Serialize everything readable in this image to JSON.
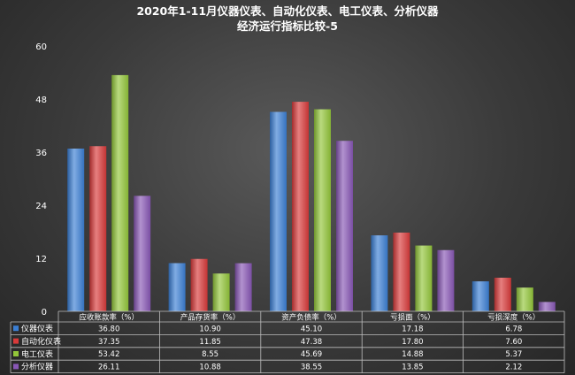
{
  "chart_data": {
    "type": "bar",
    "title": [
      "2020年1-11月仪器仪表、自动化仪表、电工仪表、分析仪器",
      "经济运行指标比较-5"
    ],
    "categories": [
      "应收账款率（%）",
      "产品存货率（%）",
      "资产负债率（%）",
      "亏损面（%）",
      "亏损深度（%）"
    ],
    "y_ticks": [
      "0",
      "12",
      "24",
      "36",
      "48",
      "60"
    ],
    "ylim": [
      0,
      60
    ],
    "grid": false,
    "legend": "bottom-table",
    "series": [
      {
        "name": "仪器仪表",
        "color": "#3b7fd4",
        "values": [
          36.8,
          10.9,
          45.1,
          17.18,
          6.78
        ],
        "labels": [
          "36.80",
          "10.90",
          "45.10",
          "17.18",
          "6.78"
        ]
      },
      {
        "name": "自动化仪表",
        "color": "#d93a3a",
        "values": [
          37.35,
          11.85,
          47.38,
          17.8,
          7.6
        ],
        "labels": [
          "37.35",
          "11.85",
          "47.38",
          "17.80",
          "7.60"
        ]
      },
      {
        "name": "电工仪表",
        "color": "#93c63a",
        "values": [
          53.42,
          8.55,
          45.69,
          14.88,
          5.37
        ],
        "labels": [
          "53.42",
          "8.55",
          "45.69",
          "14.88",
          "5.37"
        ]
      },
      {
        "name": "分析仪器",
        "color": "#8857b5",
        "values": [
          26.11,
          10.88,
          38.55,
          13.85,
          2.12
        ],
        "labels": [
          "26.11",
          "10.88",
          "38.55",
          "13.85",
          "2.12"
        ]
      }
    ]
  }
}
